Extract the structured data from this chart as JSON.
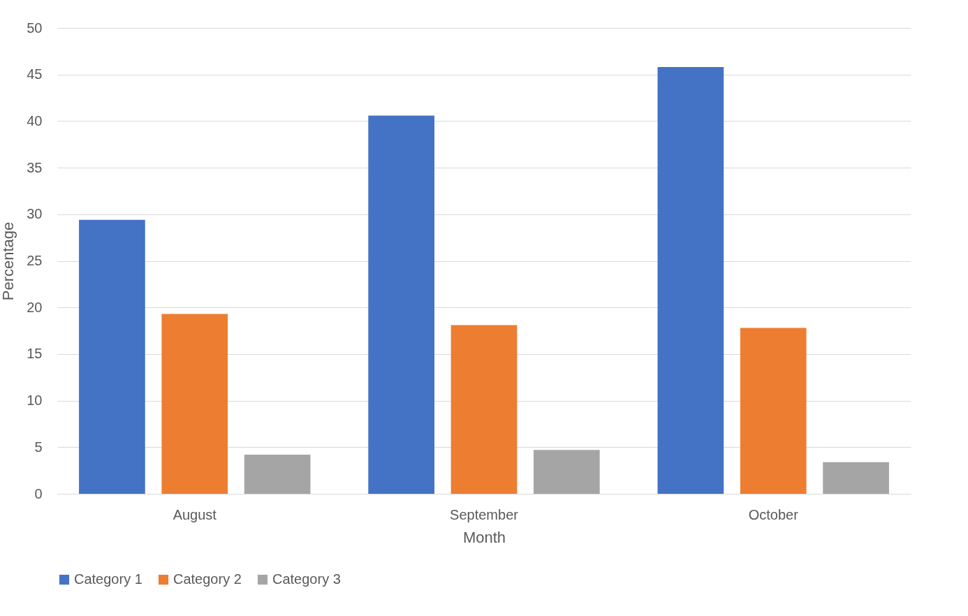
{
  "chart_data": {
    "type": "bar",
    "xlabel": "Month",
    "ylabel": "Percentage",
    "categories": [
      "August",
      "September",
      "October"
    ],
    "series": [
      {
        "name": "Category 1",
        "color": "#4472c4",
        "values": [
          29.4,
          40.6,
          45.8
        ]
      },
      {
        "name": "Category 2",
        "color": "#ed7d31",
        "values": [
          19.3,
          18.1,
          17.8
        ]
      },
      {
        "name": "Category 3",
        "color": "#a5a5a5",
        "values": [
          4.2,
          4.7,
          3.4
        ]
      }
    ],
    "ylim": [
      0,
      50
    ],
    "yticks": [
      0,
      5,
      10,
      15,
      20,
      25,
      30,
      35,
      40,
      45,
      50
    ],
    "grid": "y",
    "legend": "bottom"
  }
}
